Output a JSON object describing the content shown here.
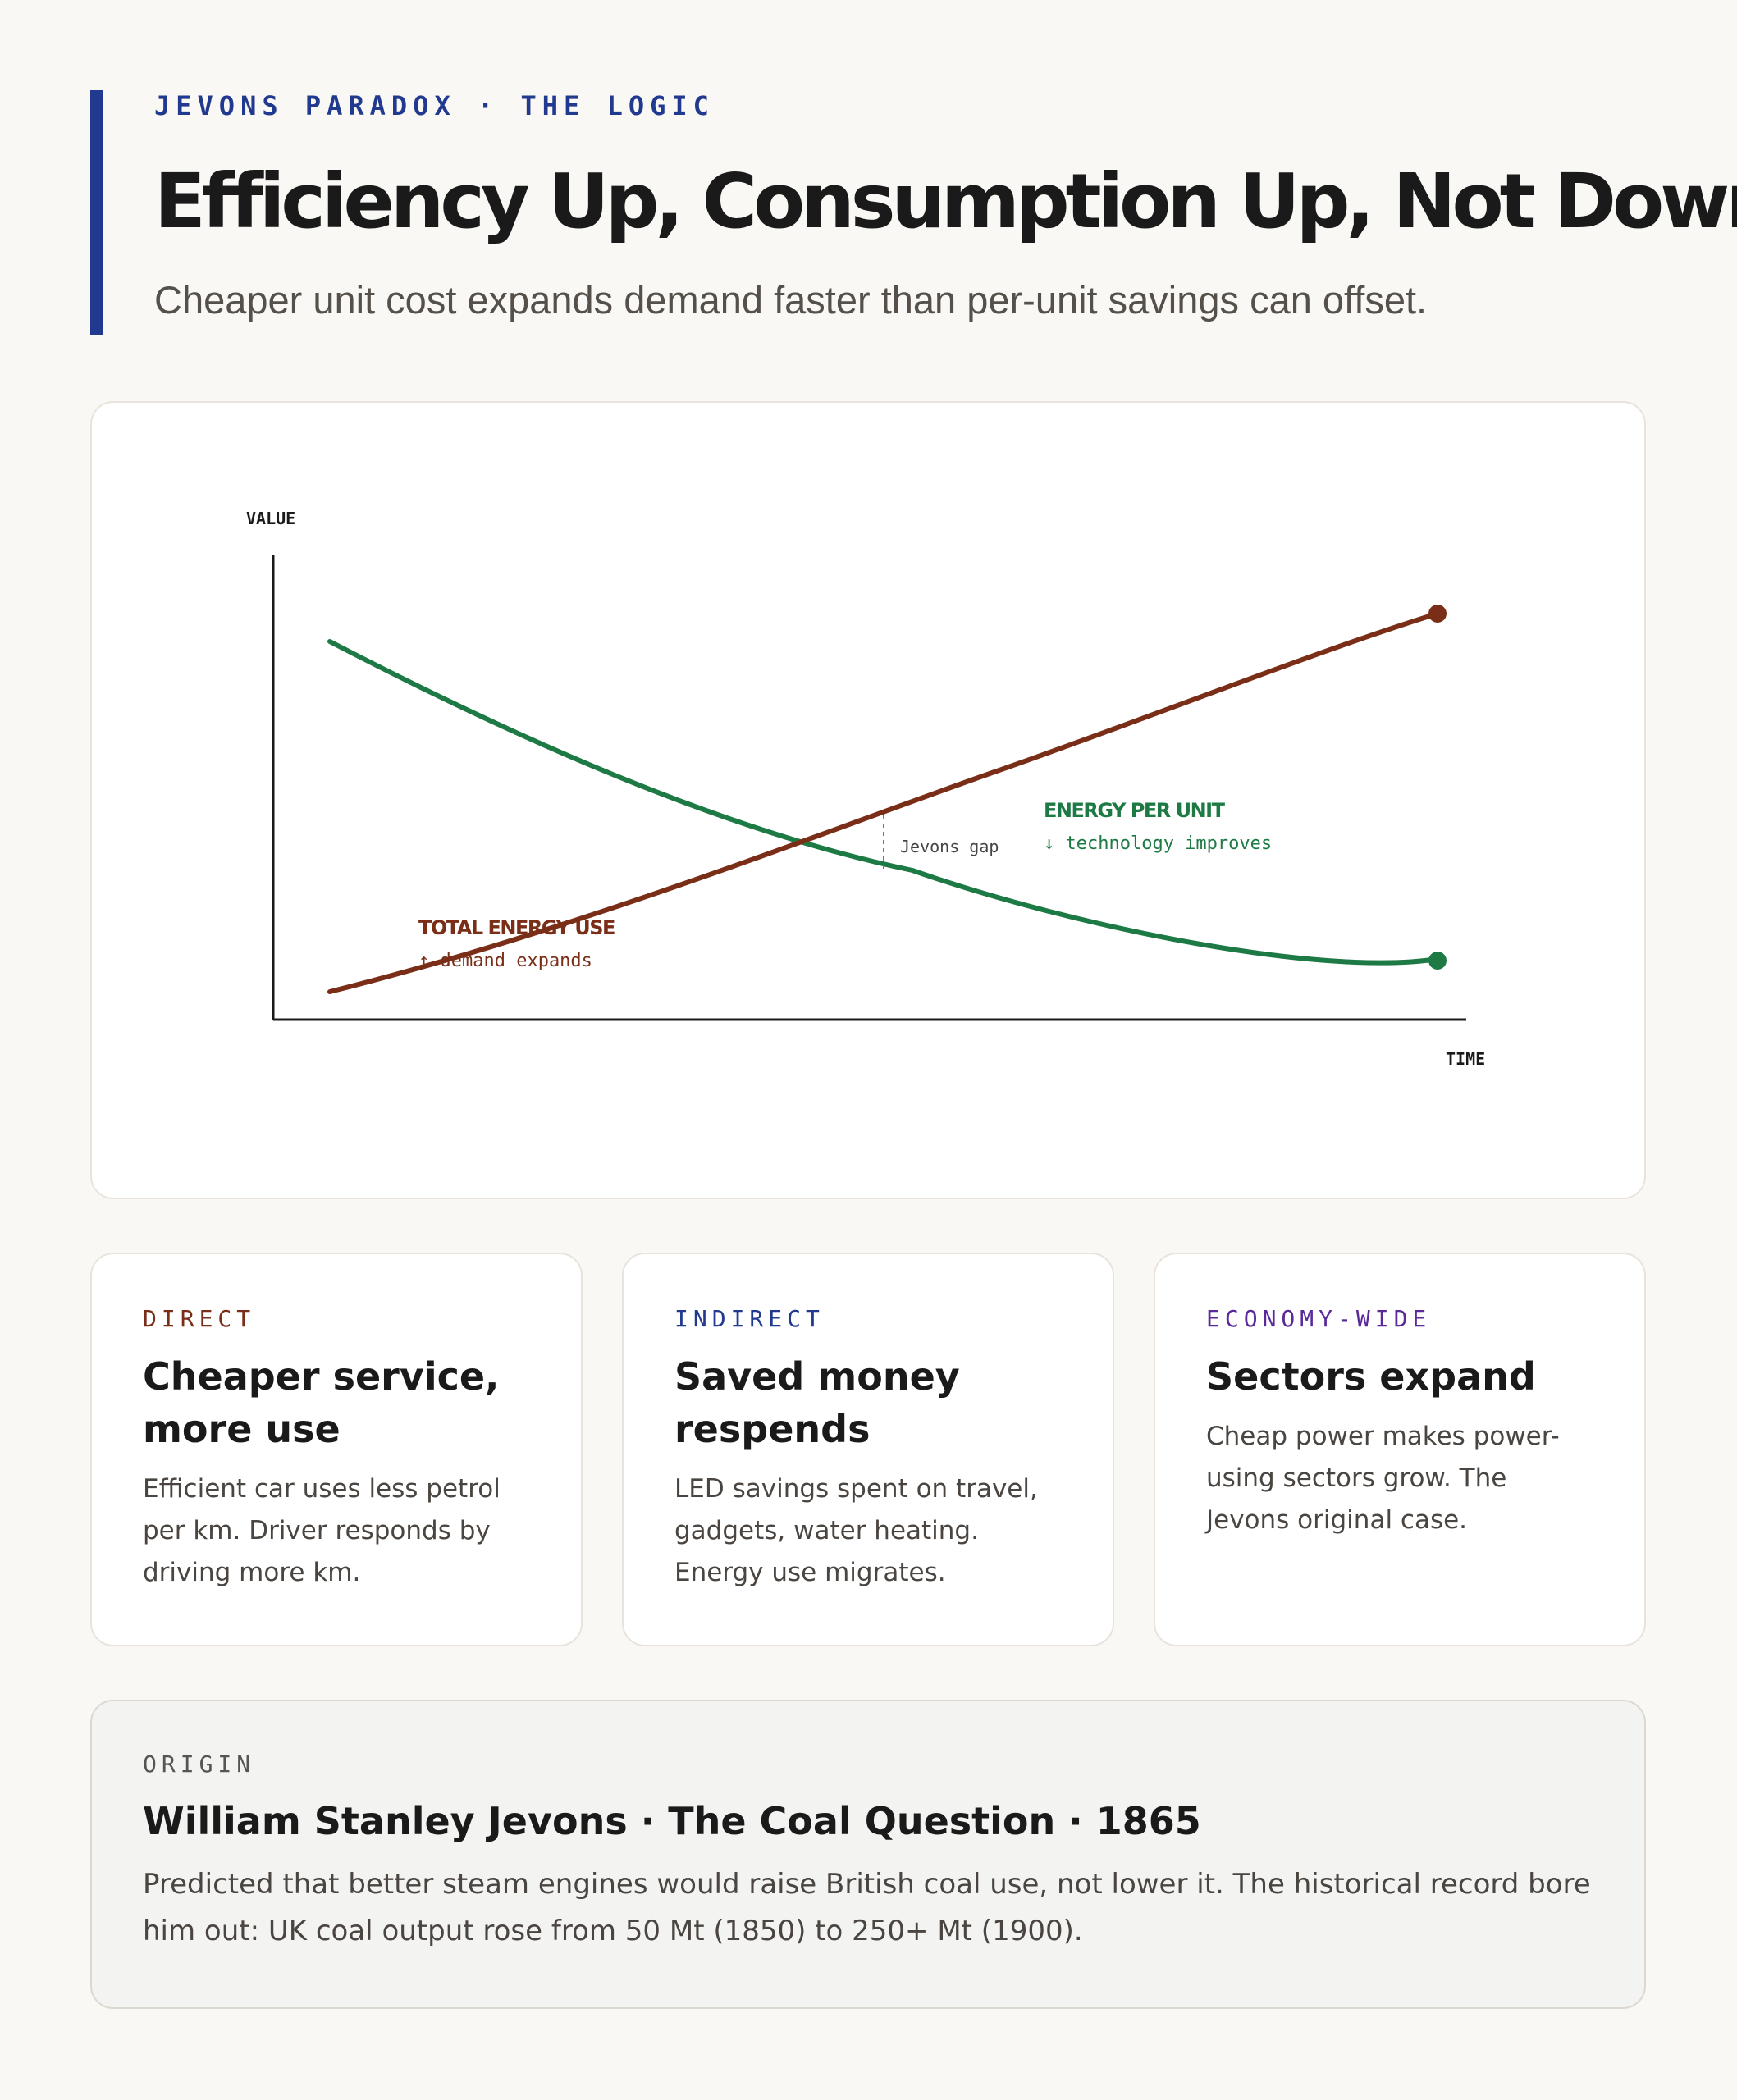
{
  "header": {
    "kicker": "JEVONS PARADOX · THE LOGIC",
    "title": "Efficiency Up, Consumption Up, Not Down",
    "subtitle": "Cheaper unit cost expands demand faster than per-unit savings can offset."
  },
  "colors": {
    "accent": "#213a8f",
    "total_energy": "#7a2e18",
    "energy_per_unit": "#1d7a45",
    "economy_wide": "#5b2a9a"
  },
  "chart_data": {
    "type": "line",
    "xlabel": "TIME",
    "ylabel": "VALUE",
    "series": [
      {
        "name": "TOTAL ENERGY USE",
        "sublabel": "↑ demand expands",
        "trend": "increasing"
      },
      {
        "name": "ENERGY PER UNIT",
        "sublabel": "↓ technology improves",
        "trend": "decreasing"
      }
    ],
    "annotation": "Jevons gap"
  },
  "cards": [
    {
      "tag": "DIRECT",
      "title": "Cheaper service, more use",
      "body": "Efficient car uses less petrol per km. Driver responds by driving more km."
    },
    {
      "tag": "INDIRECT",
      "title": "Saved money respends",
      "body": "LED savings spent on travel, gadgets, water heating. Energy use migrates."
    },
    {
      "tag": "ECONOMY-WIDE",
      "title": "Sectors expand",
      "body": "Cheap power makes power-using sectors grow. The Jevons original case."
    }
  ],
  "origin": {
    "tag": "ORIGIN",
    "title": "William Stanley Jevons · The Coal Question · 1865",
    "body": "Predicted that better steam engines would raise British coal use, not lower it. The historical record bore him out: UK coal output rose from 50 Mt (1850) to 250+ Mt (1900)."
  }
}
